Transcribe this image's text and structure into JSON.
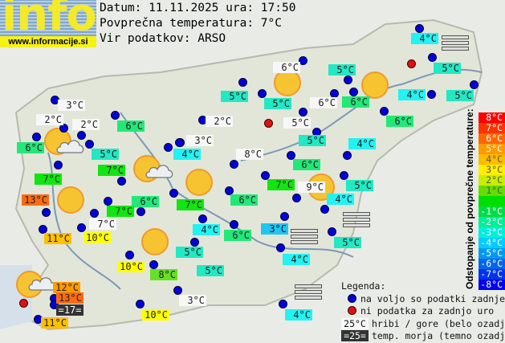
{
  "logo": {
    "text": "info",
    "url": "www.informacije.si"
  },
  "header": {
    "date_line": "Datum: 11.11.2025 ura: 17:50",
    "avg_line": "Povprečna temperatura: 7°C",
    "source_line": "Vir podatkov: ARSO"
  },
  "colors": {
    "hill": "#f7f7f7",
    "t3": "#22c4f4",
    "t4": "#22f2f2",
    "t5": "#22e8c4",
    "t6": "#22e878",
    "t7": "#11e611",
    "t8": "#66e022",
    "t10": "#ffff00",
    "t11": "#ffc000",
    "t12": "#ff9a00",
    "t13": "#ff6a11",
    "sea": "#333333"
  },
  "stations": [
    {
      "temp": "4°C",
      "cat": "t4"
    },
    {
      "temp": "6°C",
      "cat": "hill"
    },
    {
      "temp": "5°C",
      "cat": "t5"
    },
    {
      "temp": "5°C",
      "cat": "t5"
    },
    {
      "temp": "5°C",
      "cat": "t5"
    },
    {
      "temp": "5°C",
      "cat": "t5"
    },
    {
      "temp": "4°C",
      "cat": "t4"
    },
    {
      "temp": "5°C",
      "cat": "t5"
    },
    {
      "temp": "6°C",
      "cat": "hill"
    },
    {
      "temp": "6°C",
      "cat": "t6"
    },
    {
      "temp": "6°C",
      "cat": "t6"
    },
    {
      "temp": "3°C",
      "cat": "hill"
    },
    {
      "temp": "2°C",
      "cat": "hill"
    },
    {
      "temp": "2°C",
      "cat": "hill"
    },
    {
      "temp": "6°C",
      "cat": "t6"
    },
    {
      "temp": "2°C",
      "cat": "hill"
    },
    {
      "temp": "5°C",
      "cat": "hill"
    },
    {
      "temp": "6°C",
      "cat": "t6"
    },
    {
      "temp": "5°C",
      "cat": "t5"
    },
    {
      "temp": "4°C",
      "cat": "t4"
    },
    {
      "temp": "3°C",
      "cat": "hill"
    },
    {
      "temp": "8°C",
      "cat": "hill"
    },
    {
      "temp": "5°C",
      "cat": "t5"
    },
    {
      "temp": "4°C",
      "cat": "t4"
    },
    {
      "temp": "7°C",
      "cat": "t7"
    },
    {
      "temp": "6°C",
      "cat": "t6"
    },
    {
      "temp": "7°C",
      "cat": "t7"
    },
    {
      "temp": "6°C",
      "cat": "t6"
    },
    {
      "temp": "7°C",
      "cat": "t7"
    },
    {
      "temp": "7°C",
      "cat": "t7"
    },
    {
      "temp": "6°C",
      "cat": "t6"
    },
    {
      "temp": "7°C",
      "cat": "t7"
    },
    {
      "temp": "9°C",
      "cat": "hill"
    },
    {
      "temp": "4°C",
      "cat": "t4"
    },
    {
      "temp": "5°C",
      "cat": "t5"
    },
    {
      "temp": "13°C",
      "cat": "t13"
    },
    {
      "temp": "7°C",
      "cat": "hill"
    },
    {
      "temp": "11°C",
      "cat": "t11"
    },
    {
      "temp": "10°C",
      "cat": "t10"
    },
    {
      "temp": "4°C",
      "cat": "t4"
    },
    {
      "temp": "6°C",
      "cat": "t6"
    },
    {
      "temp": "3°C",
      "cat": "t3"
    },
    {
      "temp": "5°C",
      "cat": "t5"
    },
    {
      "temp": "5°C",
      "cat": "t5"
    },
    {
      "temp": "4°C",
      "cat": "t4"
    },
    {
      "temp": "10°C",
      "cat": "t10"
    },
    {
      "temp": "8°C",
      "cat": "t8"
    },
    {
      "temp": "5°C",
      "cat": "t5"
    },
    {
      "temp": "12°C",
      "cat": "t12"
    },
    {
      "temp": "13°C",
      "cat": "t13"
    },
    {
      "temp": "=17=",
      "cat": "sea"
    },
    {
      "temp": "3°C",
      "cat": "hill"
    },
    {
      "temp": "10°C",
      "cat": "t10"
    },
    {
      "temp": "4°C",
      "cat": "t4"
    },
    {
      "temp": "11°C",
      "cat": "t11"
    }
  ],
  "scale": {
    "title": "Odstopanje od povprečne temperature:",
    "rows": [
      {
        "label": "8°C",
        "color": "#ff0000"
      },
      {
        "label": "7°C",
        "color": "#ff3300"
      },
      {
        "label": "6°C",
        "color": "#ff6600"
      },
      {
        "label": "5°C",
        "color": "#ff9900"
      },
      {
        "label": "4°C",
        "color": "#ffbb00"
      },
      {
        "label": "3°C",
        "color": "#ffee00"
      },
      {
        "label": "2°C",
        "color": "#c8ee00"
      },
      {
        "label": "1°C",
        "color": "#66dd00"
      },
      {
        "label": "",
        "color": "#00dd00"
      },
      {
        "label": "-1°C",
        "color": "#00dd44"
      },
      {
        "label": "-2°C",
        "color": "#00ee99"
      },
      {
        "label": "-3°C",
        "color": "#00eedd"
      },
      {
        "label": "-4°C",
        "color": "#00ccff"
      },
      {
        "label": "-5°C",
        "color": "#0099ee"
      },
      {
        "label": "-6°C",
        "color": "#0066ee"
      },
      {
        "label": "-7°C",
        "color": "#0033ee"
      },
      {
        "label": "-8°C",
        "color": "#0000ee"
      }
    ]
  },
  "legend": {
    "title": "Legenda:",
    "available": "na voljo so podatki zadnje ure",
    "missing": "ni podatka za zadnjo uro",
    "hill_sample": "25°C",
    "hill_text": "hribi / gore (belo ozadje)",
    "sea_sample": "=25=",
    "sea_text": "temp. morja (temno ozadje)"
  }
}
